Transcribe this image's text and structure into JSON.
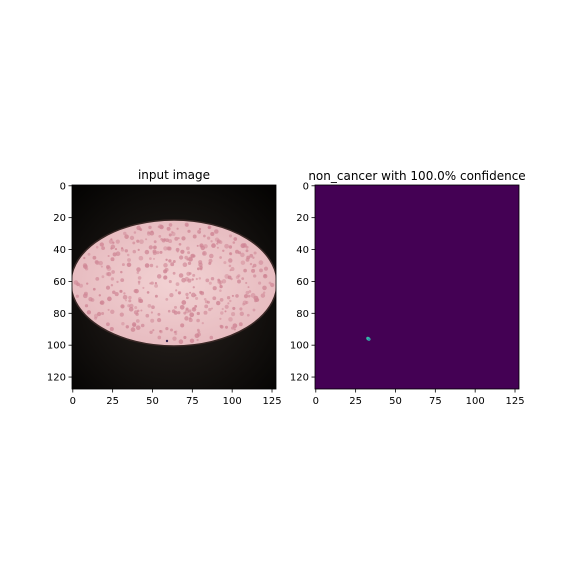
{
  "chart_data": [
    {
      "type": "image",
      "title": "input image",
      "xlabel": "",
      "ylabel": "",
      "xlim": [
        0,
        128
      ],
      "ylim": [
        128,
        0
      ],
      "x_ticks": [
        0,
        25,
        50,
        75,
        100,
        125
      ],
      "y_ticks": [
        0,
        20,
        40,
        60,
        80,
        100,
        120
      ],
      "content": "microscope-blood-smear-photo",
      "colors": {
        "background": "#050403",
        "field": "#ecc6c8",
        "cells": "#cf8695"
      }
    },
    {
      "type": "heatmap",
      "title": "non_cancer with 100.0% confidence",
      "xlabel": "",
      "ylabel": "",
      "xlim": [
        0,
        128
      ],
      "ylim": [
        128,
        0
      ],
      "x_ticks": [
        0,
        25,
        50,
        75,
        100,
        125
      ],
      "y_ticks": [
        0,
        20,
        40,
        60,
        80,
        100,
        120
      ],
      "background_color": "#440154",
      "hotspots": [
        {
          "x": 33,
          "y": 96,
          "color": "#35b7a5"
        }
      ]
    }
  ]
}
